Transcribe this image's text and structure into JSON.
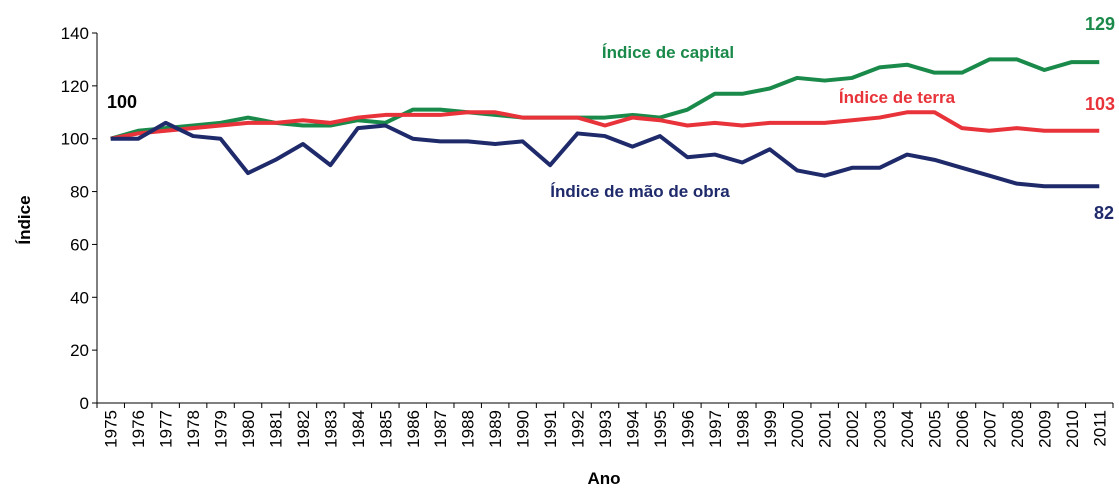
{
  "chart_data": {
    "type": "line",
    "x_label": "Ano",
    "y_label": "Índice",
    "categories": [
      "1975",
      "1976",
      "1977",
      "1978",
      "1979",
      "1980",
      "1981",
      "1982",
      "1983",
      "1984",
      "1985",
      "1986",
      "1987",
      "1988",
      "1989",
      "1990",
      "1991",
      "1992",
      "1993",
      "1994",
      "1995",
      "1996",
      "1997",
      "1998",
      "1999",
      "2000",
      "2001",
      "2002",
      "2003",
      "2004",
      "2005",
      "2006",
      "2007",
      "2008",
      "2009",
      "2010",
      "2011"
    ],
    "ylim": [
      0,
      140
    ],
    "yticks": [
      0,
      20,
      40,
      60,
      80,
      100,
      120,
      140
    ],
    "start_label": "100",
    "series": [
      {
        "name": "Índice de capital",
        "color": "#1a8a4a",
        "end_label": "129",
        "values": [
          100,
          103,
          104,
          105,
          106,
          108,
          106,
          105,
          105,
          107,
          106,
          111,
          111,
          110,
          109,
          108,
          108,
          108,
          108,
          109,
          108,
          111,
          117,
          117,
          119,
          123,
          122,
          123,
          127,
          128,
          125,
          125,
          130,
          130,
          126,
          129,
          129
        ]
      },
      {
        "name": "Índice de terra",
        "color": "#e8333a",
        "end_label": "103",
        "values": [
          100,
          102,
          103,
          104,
          105,
          106,
          106,
          107,
          106,
          108,
          109,
          109,
          109,
          110,
          110,
          108,
          108,
          108,
          105,
          108,
          107,
          105,
          106,
          105,
          106,
          106,
          106,
          107,
          108,
          110,
          110,
          104,
          103,
          104,
          103,
          103,
          103
        ]
      },
      {
        "name": "Índice de mão de obra",
        "color": "#1f2a6b",
        "end_label": "82",
        "values": [
          100,
          100,
          106,
          101,
          100,
          87,
          92,
          98,
          90,
          104,
          105,
          100,
          99,
          99,
          98,
          99,
          90,
          102,
          101,
          97,
          101,
          93,
          94,
          91,
          96,
          88,
          86,
          89,
          89,
          94,
          92,
          89,
          86,
          83,
          82,
          82,
          82
        ]
      }
    ]
  }
}
